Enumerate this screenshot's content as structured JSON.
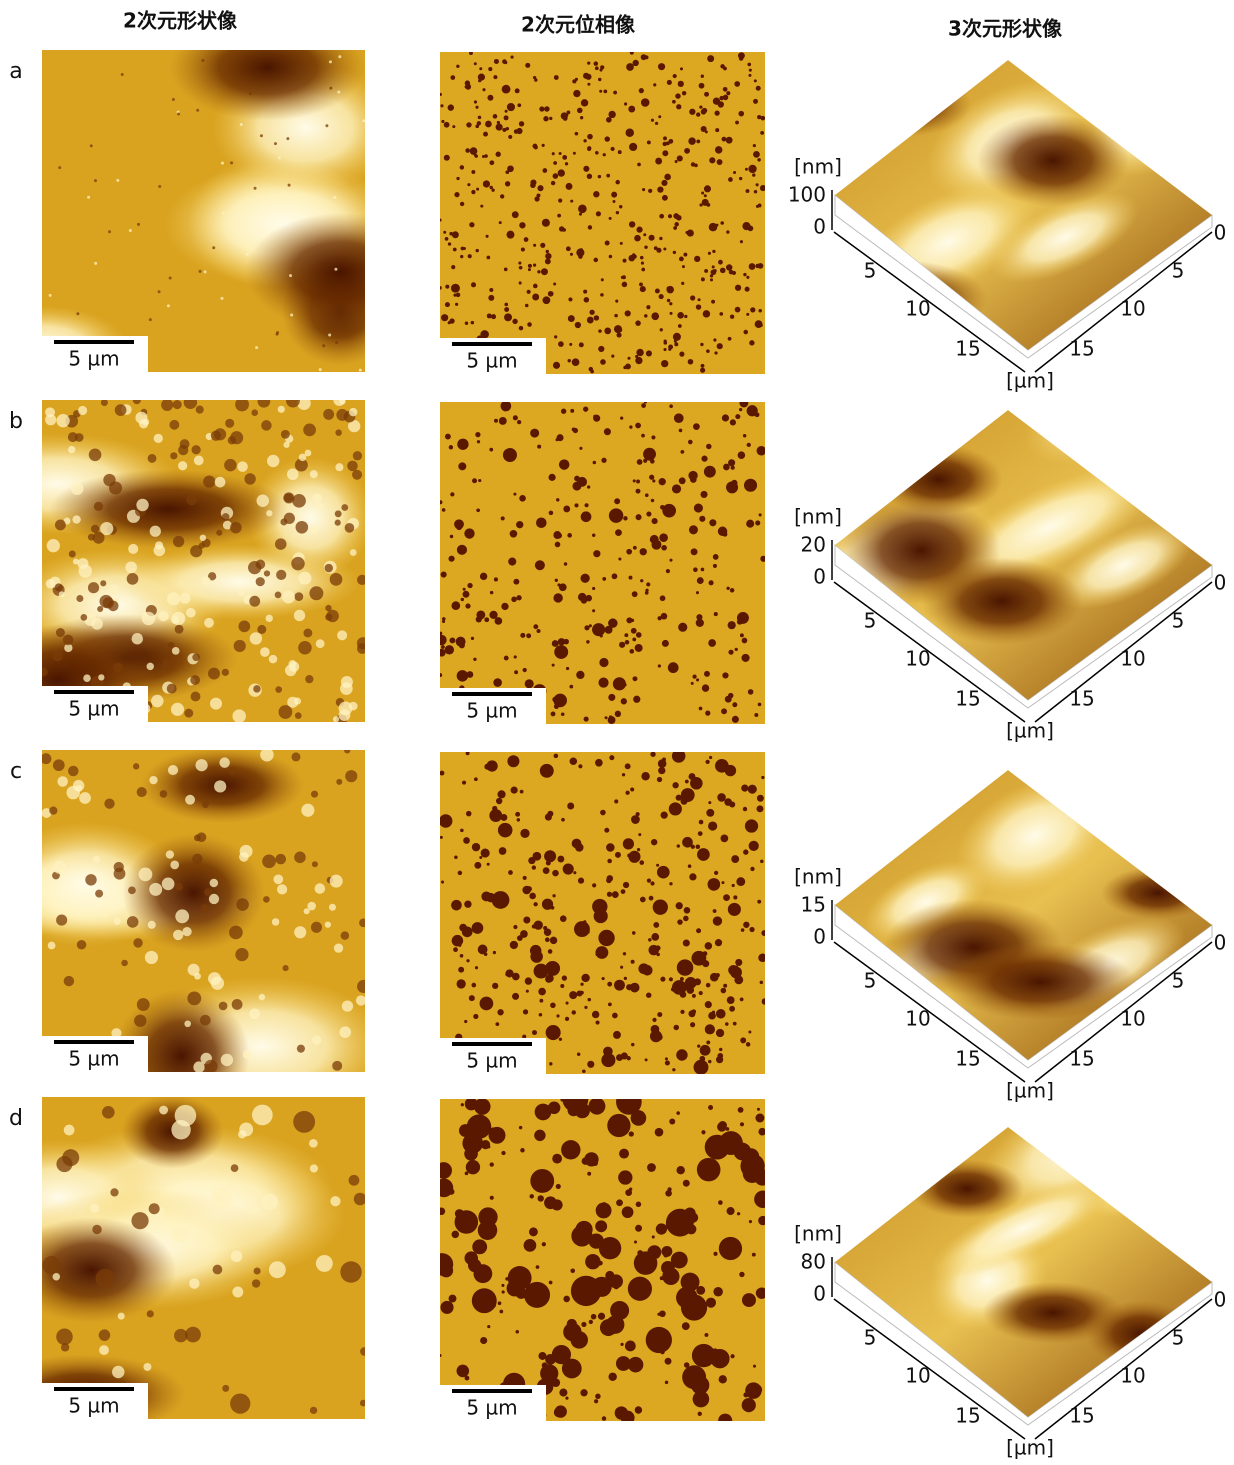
{
  "headers": [
    "2次元形状像",
    "2次元位相像",
    "3次元形状像"
  ],
  "rows": [
    {
      "label": "a",
      "scale_bars": [
        "5 µm",
        "5 µm"
      ],
      "z_unit": "[nm]",
      "z_ticks": [
        100,
        0
      ],
      "left_ticks": [
        5,
        10,
        15
      ],
      "right_ticks": [
        0,
        5,
        10,
        15
      ],
      "xy_unit": "[µm]"
    },
    {
      "label": "b",
      "scale_bars": [
        "5 µm",
        "5 µm"
      ],
      "z_unit": "[nm]",
      "z_ticks": [
        20,
        0
      ],
      "left_ticks": [
        5,
        10,
        15
      ],
      "right_ticks": [
        0,
        5,
        10,
        15
      ],
      "xy_unit": "[µm]"
    },
    {
      "label": "c",
      "scale_bars": [
        "5 µm",
        "5 µm"
      ],
      "z_unit": "[nm]",
      "z_ticks": [
        15,
        0
      ],
      "left_ticks": [
        5,
        10,
        15
      ],
      "right_ticks": [
        0,
        5,
        10,
        15
      ],
      "xy_unit": "[µm]"
    },
    {
      "label": "d",
      "scale_bars": [
        "5 µm",
        "5 µm"
      ],
      "z_unit": "[nm]",
      "z_ticks": [
        80,
        0
      ],
      "left_ticks": [
        5,
        10,
        15
      ],
      "right_ticks": [
        0,
        5,
        10,
        15
      ],
      "xy_unit": "[µm]"
    }
  ]
}
